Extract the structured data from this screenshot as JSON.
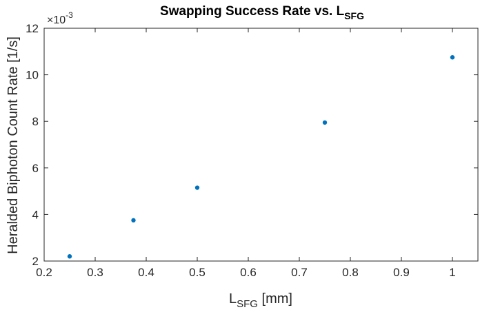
{
  "chart_data": {
    "type": "scatter",
    "title_main": "Swapping Success Rate vs. L",
    "title_sub": "SFG",
    "xlabel_main": "L",
    "xlabel_sub": "SFG",
    "xlabel_unit": " [mm]",
    "ylabel": "Heralded Biphoton Count Rate [1/s]",
    "y_exponent_base": "×10",
    "y_exponent_power": "-3",
    "x": [
      0.25,
      0.375,
      0.5,
      0.75,
      1.0
    ],
    "y": [
      2.2,
      3.75,
      5.15,
      7.95,
      10.75
    ],
    "y_units_scale": 0.001,
    "xlim": [
      0.2,
      1.05
    ],
    "ylim": [
      2,
      12
    ],
    "xticks": [
      0.2,
      0.3,
      0.4,
      0.5,
      0.6,
      0.7,
      0.8,
      0.9,
      1.0
    ],
    "xtick_labels": [
      "0.2",
      "0.3",
      "0.4",
      "0.5",
      "0.6",
      "0.7",
      "0.8",
      "0.9",
      "1"
    ],
    "yticks": [
      2,
      4,
      6,
      8,
      10,
      12
    ],
    "ytick_labels": [
      "2",
      "4",
      "6",
      "8",
      "10",
      "12"
    ],
    "grid": false,
    "marker_color": "#0072BD",
    "axis_color": "#262626"
  }
}
